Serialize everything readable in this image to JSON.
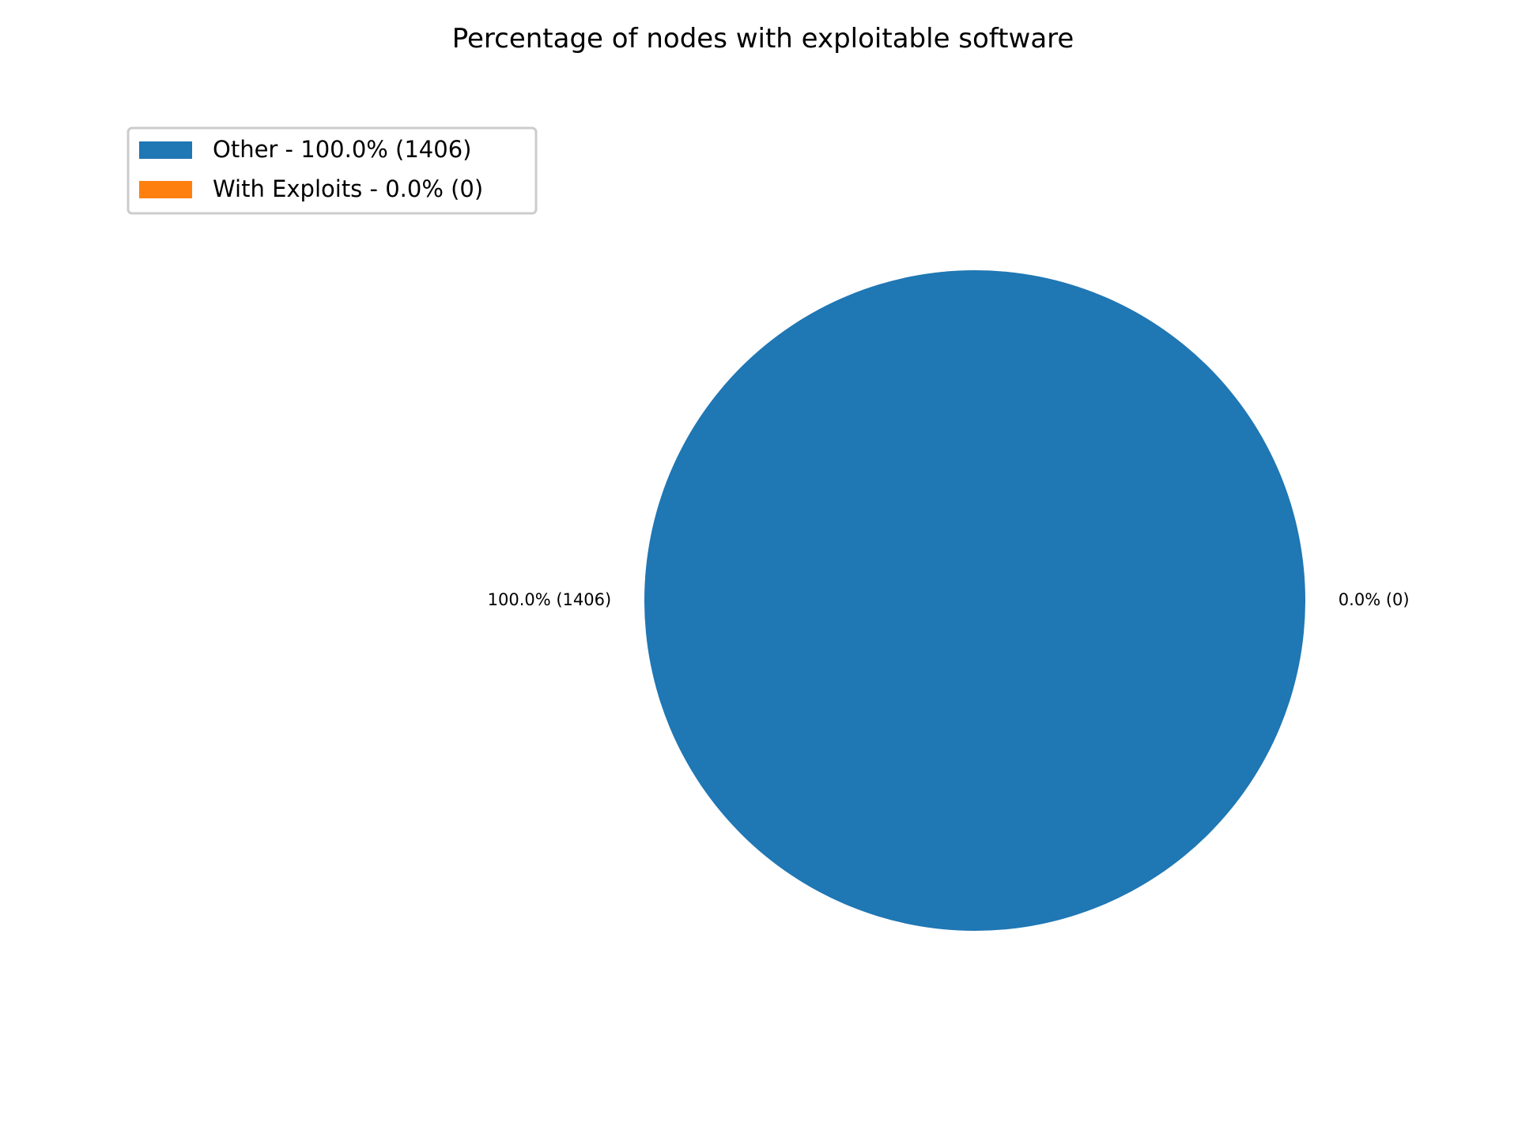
{
  "chart_data": {
    "type": "pie",
    "title": "Percentage of nodes with exploitable software",
    "slices": [
      {
        "name": "Other",
        "value": 1406,
        "percent": 100.0,
        "color": "#1f77b4",
        "legend_label": "Other - 100.0% (1406)",
        "data_label": "100.0% (1406)"
      },
      {
        "name": "With Exploits",
        "value": 0,
        "percent": 0.0,
        "color": "#ff7f0e",
        "legend_label": "With Exploits - 0.0% (0)",
        "data_label": "0.0% (0)"
      }
    ],
    "legend_position": "top-left"
  }
}
